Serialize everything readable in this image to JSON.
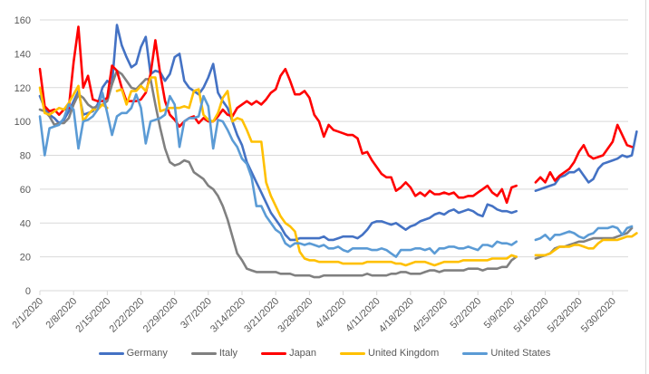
{
  "chart_data": {
    "type": "line",
    "title": "",
    "xlabel": "",
    "ylabel": "",
    "ylim": [
      0,
      160
    ],
    "y_ticks": [
      0,
      20,
      40,
      60,
      80,
      100,
      120,
      140,
      160
    ],
    "grid": true,
    "legend_position": "bottom",
    "x_start": "2/1/2020",
    "x_tick_labels": [
      "2/1/2020",
      "2/8/2020",
      "2/15/2020",
      "2/22/2020",
      "2/29/2020",
      "3/7/2020",
      "3/14/2020",
      "3/21/2020",
      "3/28/2020",
      "4/4/2020",
      "4/11/2020",
      "4/18/2020",
      "4/25/2020",
      "5/2/2020",
      "5/9/2020",
      "5/16/2020",
      "5/23/2020",
      "5/30/2020"
    ],
    "x_tick_step_days": 7,
    "series": [
      {
        "name": "Germany",
        "color": "#4472c4",
        "values": [
          115,
          108,
          104,
          102,
          99,
          101,
          106,
          112,
          118,
          104,
          105,
          106,
          110,
          120,
          124,
          122,
          157,
          145,
          138,
          132,
          134,
          144,
          150,
          128,
          130,
          129,
          124,
          128,
          138,
          140,
          124,
          120,
          118,
          116,
          120,
          126,
          134,
          117,
          112,
          108,
          100,
          92,
          86,
          76,
          70,
          64,
          58,
          52,
          46,
          42,
          38,
          33,
          30,
          30,
          31,
          31,
          31,
          31,
          31,
          32,
          30,
          30,
          31,
          32,
          32,
          32,
          31,
          33,
          36,
          40,
          41,
          41,
          40,
          39,
          40,
          38,
          36,
          38,
          39,
          41,
          42,
          43,
          45,
          46,
          45,
          47,
          48,
          46,
          47,
          48,
          47,
          45,
          44,
          51,
          50,
          48,
          47,
          47,
          46,
          47,
          null,
          null,
          null,
          59,
          60,
          61,
          62,
          63,
          67,
          68,
          70,
          70,
          72,
          68,
          64,
          66,
          72,
          75,
          76,
          77,
          78,
          80,
          79,
          80,
          94
        ],
        "note": "values are daily, starting 2/1/2020; null = gap"
      },
      {
        "name": "Italy",
        "color": "#808080",
        "values": [
          107,
          106,
          103,
          98,
          99,
          99,
          102,
          110,
          116,
          114,
          110,
          108,
          109,
          110,
          112,
          122,
          130,
          128,
          124,
          120,
          119,
          122,
          125,
          125,
          110,
          96,
          84,
          76,
          74,
          75,
          77,
          76,
          70,
          68,
          66,
          62,
          60,
          56,
          50,
          42,
          32,
          22,
          18,
          13,
          12,
          11,
          11,
          11,
          11,
          11,
          10,
          10,
          10,
          9,
          9,
          9,
          9,
          8,
          8,
          9,
          9,
          9,
          9,
          9,
          9,
          9,
          9,
          9,
          10,
          9,
          9,
          9,
          9,
          10,
          10,
          11,
          11,
          10,
          10,
          10,
          11,
          12,
          12,
          11,
          12,
          12,
          12,
          12,
          12,
          13,
          13,
          13,
          12,
          13,
          13,
          13,
          14,
          14,
          18,
          20,
          null,
          null,
          null,
          19,
          20,
          21,
          22,
          25,
          26,
          26,
          27,
          28,
          29,
          29,
          30,
          31,
          31,
          31,
          31,
          31,
          32,
          33,
          34,
          37
        ],
        "note": ""
      },
      {
        "name": "Japan",
        "color": "#ff0000",
        "values": [
          131,
          109,
          106,
          107,
          104,
          107,
          108,
          135,
          156,
          120,
          127,
          113,
          112,
          112,
          114,
          133,
          130,
          120,
          112,
          112,
          112,
          113,
          117,
          128,
          148,
          128,
          112,
          104,
          101,
          97,
          100,
          102,
          103,
          99,
          102,
          100,
          100,
          103,
          107,
          104,
          103,
          108,
          110,
          112,
          110,
          112,
          110,
          113,
          117,
          119,
          127,
          131,
          124,
          116,
          116,
          118,
          114,
          104,
          100,
          91,
          98,
          95,
          94,
          93,
          92,
          92,
          90,
          81,
          82,
          77,
          73,
          69,
          67,
          67,
          59,
          61,
          64,
          61,
          56,
          58,
          56,
          59,
          57,
          57,
          58,
          57,
          58,
          55,
          55,
          56,
          56,
          58,
          60,
          62,
          58,
          56,
          60,
          52,
          61,
          62,
          null,
          null,
          null,
          64,
          67,
          64,
          70,
          65,
          68,
          70,
          72,
          76,
          82,
          86,
          80,
          78,
          79,
          80,
          84,
          88,
          98,
          92,
          86,
          85
        ],
        "note": ""
      },
      {
        "name": "United Kingdom",
        "color": "#ffc000",
        "values": [
          120,
          105,
          104,
          106,
          108,
          107,
          111,
          116,
          121,
          100,
          104,
          107,
          107,
          110,
          108,
          null,
          118,
          119,
          110,
          118,
          118,
          121,
          118,
          126,
          126,
          106,
          107,
          108,
          108,
          108,
          109,
          108,
          118,
          119,
          104,
          101,
          100,
          105,
          114,
          118,
          100,
          102,
          101,
          95,
          88,
          88,
          88,
          64,
          56,
          50,
          44,
          40,
          38,
          35,
          23,
          19,
          18,
          18,
          17,
          17,
          17,
          17,
          17,
          16,
          16,
          16,
          16,
          16,
          17,
          17,
          17,
          17,
          17,
          17,
          16,
          16,
          15,
          16,
          17,
          17,
          17,
          16,
          15,
          16,
          17,
          17,
          17,
          17,
          18,
          18,
          18,
          18,
          18,
          18,
          19,
          19,
          19,
          19,
          21,
          20,
          null,
          null,
          null,
          21,
          21,
          21,
          22,
          24,
          26,
          26,
          26,
          27,
          27,
          26,
          25,
          25,
          28,
          30,
          30,
          30,
          30,
          31,
          32,
          32,
          34
        ],
        "note": "short gap near 2/16"
      },
      {
        "name": "United States",
        "color": "#5b9bd5",
        "values": [
          103,
          80,
          96,
          97,
          98,
          102,
          110,
          107,
          84,
          100,
          101,
          103,
          107,
          117,
          105,
          92,
          103,
          105,
          105,
          108,
          116,
          108,
          87,
          100,
          101,
          102,
          104,
          115,
          110,
          85,
          100,
          102,
          102,
          103,
          115,
          109,
          84,
          101,
          100,
          95,
          89,
          85,
          78,
          75,
          67,
          50,
          50,
          44,
          40,
          36,
          34,
          28,
          26,
          28,
          28,
          27,
          28,
          27,
          26,
          27,
          25,
          25,
          26,
          24,
          23,
          25,
          25,
          25,
          25,
          24,
          24,
          25,
          24,
          22,
          20,
          24,
          24,
          24,
          25,
          25,
          24,
          25,
          22,
          25,
          25,
          26,
          26,
          25,
          25,
          26,
          25,
          24,
          27,
          27,
          26,
          29,
          28,
          28,
          27,
          29,
          null,
          null,
          null,
          30,
          31,
          33,
          30,
          33,
          33,
          34,
          35,
          34,
          32,
          31,
          33,
          34,
          37,
          37,
          37,
          38,
          37,
          33,
          37,
          38
        ],
        "note": ""
      }
    ]
  },
  "legend": {
    "items": [
      {
        "label": "Germany",
        "color": "#4472c4"
      },
      {
        "label": "Italy",
        "color": "#808080"
      },
      {
        "label": "Japan",
        "color": "#ff0000"
      },
      {
        "label": "United Kingdom",
        "color": "#ffc000"
      },
      {
        "label": "United States",
        "color": "#5b9bd5"
      }
    ]
  }
}
